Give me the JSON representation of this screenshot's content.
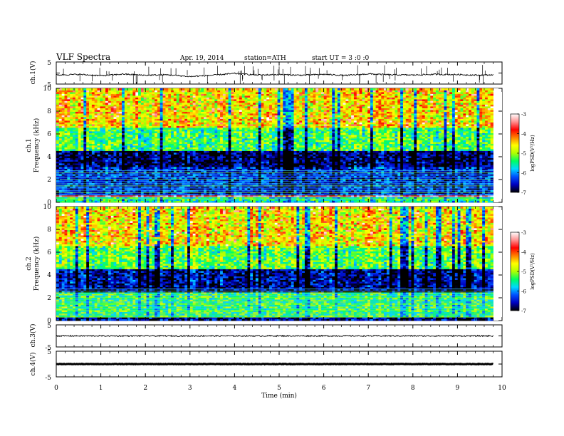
{
  "header": {
    "title": "VLF  Spectra",
    "date": "Apr. 19, 2014",
    "station": "station=ATH",
    "start": "start  UT  =   3  :0  :0"
  },
  "colorbar": {
    "label": "logPSD(V²/Hz)",
    "ticks": [
      "-3",
      "-4",
      "-5",
      "-6",
      "-7"
    ],
    "stops": [
      "#000000",
      "#0000c0",
      "#0050ff",
      "#00d8ff",
      "#00ff60",
      "#b0ff00",
      "#ffff00",
      "#ff8000",
      "#ff0000",
      "#ff9090",
      "#ffffff"
    ]
  },
  "chart_data": [
    {
      "type": "line",
      "name": "ch.1 waveform",
      "ylabel": "ch.1(V)",
      "ylim": [
        -5,
        5
      ],
      "ytick_labels": [
        "5",
        "-5"
      ],
      "baseline": -0.8,
      "x": [
        0,
        0.5,
        1.0,
        1.5,
        2.0,
        2.5,
        3.0,
        3.5,
        4.0,
        4.5,
        5.0,
        5.5,
        6.0,
        6.5,
        7.0,
        7.5,
        8.0,
        8.5,
        9.0,
        9.5,
        9.8
      ],
      "y": [
        -0.9,
        -0.6,
        -1.2,
        -0.5,
        -1.0,
        -0.8,
        -1.6,
        -1.0,
        -0.2,
        -0.9,
        -0.7,
        -1.0,
        -0.6,
        -1.1,
        -0.4,
        -0.8,
        -0.9,
        -0.6,
        -0.7,
        -1.0,
        -0.8
      ]
    },
    {
      "type": "heatmap",
      "name": "ch.1 spectrogram",
      "ylabel": "ch.1\nFrequency (kHz)",
      "ytick_labels": [
        "10",
        "8",
        "6",
        "4",
        "2",
        "0"
      ],
      "xlim": [
        0,
        10
      ],
      "ylim": [
        0,
        10
      ],
      "zlim": [
        -7,
        -3
      ],
      "xmax_data": 9.8,
      "bands": [
        {
          "from": 0,
          "to": 0.4,
          "logpsd": -5.5
        },
        {
          "from": 0.4,
          "to": 0.7,
          "logpsd": -3.6
        },
        {
          "from": 0.7,
          "to": 3.2,
          "logpsd": -6.4
        },
        {
          "from": 3.2,
          "to": 4.5,
          "logpsd": -6.8
        },
        {
          "from": 4.5,
          "to": 6.5,
          "logpsd": -5.3
        },
        {
          "from": 6.5,
          "to": 10,
          "logpsd": -4.6
        }
      ]
    },
    {
      "type": "heatmap",
      "name": "ch.2 spectrogram",
      "ylabel": "ch.2\nFrequency (kHz)",
      "ytick_labels": [
        "10",
        "8",
        "6",
        "4",
        "2",
        "0"
      ],
      "xlim": [
        0,
        10
      ],
      "ylim": [
        0,
        10
      ],
      "zlim": [
        -7,
        -3
      ],
      "xmax_data": 9.8,
      "bands": [
        {
          "from": 0,
          "to": 0.3,
          "logpsd": -6.6
        },
        {
          "from": 0.3,
          "to": 2.5,
          "logpsd": -5.3
        },
        {
          "from": 2.5,
          "to": 4.5,
          "logpsd": -6.6
        },
        {
          "from": 4.5,
          "to": 6.5,
          "logpsd": -5.2
        },
        {
          "from": 6.5,
          "to": 10,
          "logpsd": -4.6
        }
      ]
    },
    {
      "type": "line",
      "name": "ch.3 waveform",
      "ylabel": "ch.3(V)",
      "ylim": [
        -5,
        5
      ],
      "ytick_labels": [
        "5",
        "-5"
      ],
      "baseline": 0,
      "x": [
        0,
        9.8
      ],
      "y": [
        0,
        0
      ]
    },
    {
      "type": "line",
      "name": "ch.4 waveform",
      "ylabel": "ch.4(V)",
      "ylim": [
        -5,
        5
      ],
      "ytick_labels": [
        "5",
        "-5"
      ],
      "baseline": 0,
      "x": [
        0,
        9.8
      ],
      "y": [
        0,
        0
      ]
    }
  ],
  "xaxis": {
    "label": "Time  (min)",
    "ticks": [
      "0",
      "1",
      "2",
      "3",
      "4",
      "5",
      "6",
      "7",
      "8",
      "9",
      "10"
    ],
    "xlim": [
      0,
      10
    ]
  }
}
